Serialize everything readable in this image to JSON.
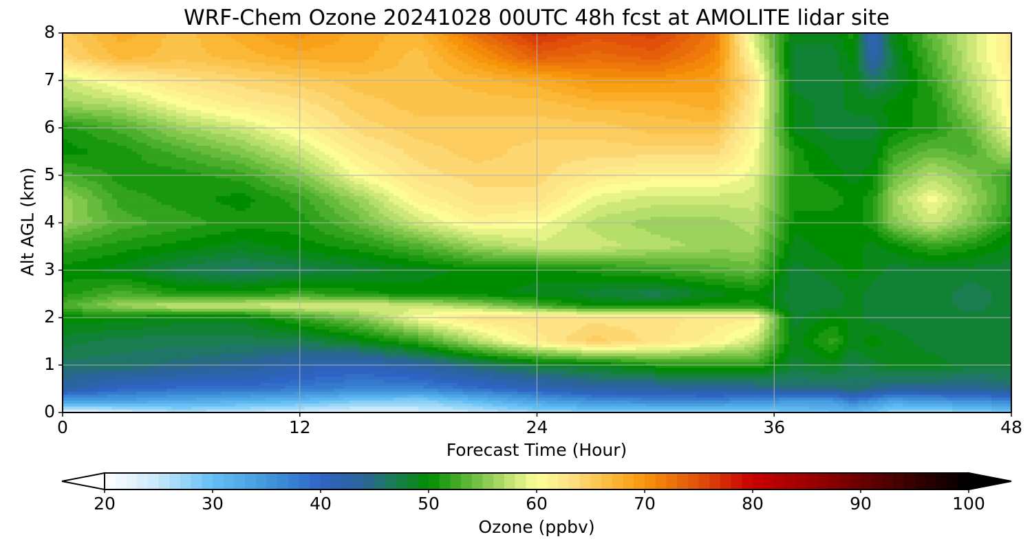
{
  "chart_data": {
    "type": "heatmap",
    "title": "WRF-Chem Ozone  20241028 00UTC 48h fcst at AMOLITE lidar site",
    "xlabel": "Forecast Time (Hour)",
    "ylabel": "Alt AGL (km)",
    "xlim": [
      0,
      48
    ],
    "ylim": [
      0,
      8
    ],
    "xticks": [
      "0",
      "12",
      "24",
      "36",
      "48"
    ],
    "yticks": [
      "0",
      "1",
      "2",
      "3",
      "4",
      "5",
      "6",
      "7",
      "8"
    ],
    "grid": true,
    "x": [
      0,
      3,
      6,
      9,
      12,
      15,
      18,
      21,
      24,
      27,
      30,
      33,
      35,
      37,
      39,
      40,
      41,
      42,
      44,
      46,
      48
    ],
    "y": [
      0,
      0.25,
      0.5,
      1,
      1.5,
      2,
      2.25,
      2.5,
      3,
      3.5,
      4,
      4.5,
      5,
      5.5,
      6,
      6.5,
      7,
      7.5,
      8
    ],
    "z": [
      [
        22,
        24,
        26,
        25,
        24,
        23,
        24,
        25,
        27,
        28,
        28,
        28,
        28,
        29,
        30,
        30,
        29,
        27,
        27,
        28,
        29
      ],
      [
        34,
        34,
        33,
        32,
        31,
        29,
        28,
        31,
        34,
        36,
        37,
        37,
        36,
        35,
        35,
        38,
        36,
        34,
        35,
        36,
        37
      ],
      [
        43,
        40,
        39,
        39,
        38,
        37,
        37,
        39,
        41,
        43,
        43,
        44,
        44,
        45,
        45,
        46,
        45,
        44,
        44,
        44,
        45
      ],
      [
        46,
        46,
        45,
        44,
        42,
        41,
        43,
        46,
        48,
        49,
        51,
        51,
        52,
        48,
        49,
        47,
        48,
        49,
        49,
        48,
        48
      ],
      [
        48,
        47,
        47,
        47,
        47,
        49,
        52,
        57,
        62,
        65,
        63,
        61,
        58,
        49,
        52,
        49,
        50,
        49,
        48,
        48,
        48
      ],
      [
        50,
        50,
        49,
        49,
        52,
        55,
        60,
        63,
        63,
        63,
        63,
        62,
        62,
        48,
        50,
        49,
        48,
        48,
        48,
        48,
        48
      ],
      [
        53,
        56,
        58,
        58,
        59,
        59,
        58,
        56,
        53,
        50,
        50,
        51,
        51,
        48,
        48,
        49,
        48,
        48,
        48,
        47,
        48
      ],
      [
        51,
        53,
        51,
        51,
        52,
        51,
        50,
        50,
        49,
        48,
        47,
        49,
        50,
        48,
        48,
        49,
        48,
        48,
        48,
        47,
        48
      ],
      [
        50,
        49,
        47,
        46,
        47,
        48,
        49,
        50,
        50,
        51,
        52,
        53,
        54,
        48,
        49,
        50,
        49,
        48,
        48,
        48,
        48
      ],
      [
        52,
        51,
        50,
        49,
        50,
        51,
        53,
        56,
        58,
        58,
        57,
        56,
        56,
        49,
        50,
        50,
        49,
        50,
        52,
        51,
        49
      ],
      [
        56,
        53,
        52,
        51,
        51,
        54,
        58,
        61,
        60,
        57,
        56,
        56,
        57,
        50,
        50,
        50,
        51,
        55,
        58,
        55,
        51
      ],
      [
        56,
        52,
        51,
        50,
        52,
        56,
        61,
        63,
        63,
        59,
        58,
        58,
        58,
        51,
        51,
        50,
        51,
        56,
        60,
        56,
        52
      ],
      [
        53,
        51,
        51,
        52,
        55,
        60,
        63,
        64,
        64,
        62,
        61,
        61,
        59,
        51,
        50,
        49,
        50,
        54,
        57,
        55,
        52
      ],
      [
        50,
        51,
        53,
        55,
        58,
        62,
        64,
        65,
        64,
        64,
        64,
        64,
        60,
        51,
        49,
        49,
        49,
        52,
        54,
        53,
        57
      ],
      [
        51,
        53,
        56,
        58,
        61,
        64,
        65,
        65,
        65,
        65,
        66,
        66,
        61,
        49,
        48,
        48,
        48,
        50,
        51,
        54,
        60
      ],
      [
        56,
        57,
        60,
        62,
        63,
        65,
        66,
        66,
        66,
        67,
        67,
        68,
        62,
        49,
        48,
        49,
        49,
        50,
        51,
        56,
        61
      ],
      [
        58,
        61,
        63,
        64,
        65,
        66,
        66,
        67,
        68,
        70,
        70,
        69,
        63,
        48,
        48,
        49,
        46,
        48,
        52,
        57,
        61
      ],
      [
        64,
        67,
        66,
        67,
        68,
        68,
        66,
        70,
        74,
        73,
        74,
        71,
        60,
        48,
        48,
        50,
        42,
        48,
        53,
        58,
        62
      ],
      [
        65,
        68,
        66,
        68,
        70,
        68,
        67,
        73,
        77,
        75,
        76,
        72,
        58,
        49,
        49,
        51,
        40,
        49,
        54,
        58,
        62
      ]
    ],
    "colorbar": {
      "label": "Ozone  (ppbv)",
      "ticks": [
        "20",
        "30",
        "40",
        "50",
        "60",
        "70",
        "80",
        "90",
        "100"
      ],
      "min": 20,
      "max": 100,
      "extend": "both",
      "stops": [
        {
          "v": 20,
          "c": "#ffffff"
        },
        {
          "v": 25,
          "c": "#c6e8fa"
        },
        {
          "v": 30,
          "c": "#63bff4"
        },
        {
          "v": 36,
          "c": "#3d8fd8"
        },
        {
          "v": 40,
          "c": "#2e64c4"
        },
        {
          "v": 44,
          "c": "#2a6498"
        },
        {
          "v": 47,
          "c": "#1a7d4f"
        },
        {
          "v": 50,
          "c": "#008c00"
        },
        {
          "v": 53,
          "c": "#4caf2d"
        },
        {
          "v": 57,
          "c": "#b5de6b"
        },
        {
          "v": 60,
          "c": "#fdfd96"
        },
        {
          "v": 63,
          "c": "#fde286"
        },
        {
          "v": 67,
          "c": "#fbb836"
        },
        {
          "v": 70,
          "c": "#f7950a"
        },
        {
          "v": 75,
          "c": "#e0500a"
        },
        {
          "v": 80,
          "c": "#c80000"
        },
        {
          "v": 86,
          "c": "#960000"
        },
        {
          "v": 93,
          "c": "#4a0000"
        },
        {
          "v": 100,
          "c": "#000000"
        }
      ]
    }
  }
}
